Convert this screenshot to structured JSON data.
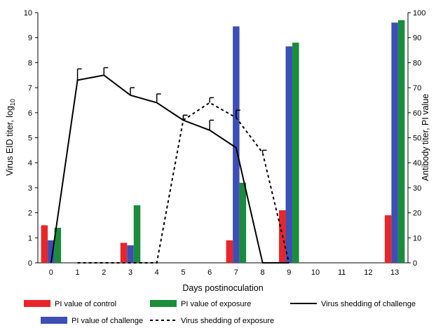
{
  "chart_data": {
    "type": "bar",
    "categories": [
      "0",
      "1",
      "2",
      "3",
      "4",
      "5",
      "6",
      "7",
      "8",
      "9",
      "10",
      "11",
      "12",
      "13"
    ],
    "xlabel": "Days postinoculation",
    "ylabel_left": "Virus EID titer, log",
    "ylabel_left_subscript": "10",
    "ylabel_right": "Antibody titer, PI value",
    "ylim_left": [
      0,
      10
    ],
    "ylim_right": [
      0,
      100
    ],
    "yticks_left": [
      "0",
      "1",
      "2",
      "3",
      "4",
      "5",
      "6",
      "7",
      "8",
      "9",
      "10"
    ],
    "yticks_right": [
      "0",
      "10",
      "20",
      "30",
      "40",
      "50",
      "60",
      "70",
      "80",
      "90",
      "100"
    ],
    "grid": false,
    "legend_position": "bottom",
    "bar_series": [
      {
        "name": "PI value of control",
        "color": "#e8262a",
        "axis": "right",
        "values": [
          15,
          null,
          null,
          8,
          null,
          null,
          null,
          9,
          null,
          21,
          null,
          null,
          null,
          19
        ]
      },
      {
        "name": "PI value of challenge",
        "color": "#3d4fb5",
        "axis": "right",
        "values": [
          9,
          null,
          null,
          7,
          null,
          null,
          null,
          94.5,
          null,
          86.5,
          null,
          null,
          null,
          96
        ]
      },
      {
        "name": "PI value of exposure",
        "color": "#1a8c3c",
        "axis": "right",
        "values": [
          14,
          null,
          null,
          23,
          null,
          null,
          null,
          32,
          null,
          88,
          null,
          null,
          null,
          97
        ]
      }
    ],
    "line_series": [
      {
        "name": "Virus shedding of challenge",
        "style": "solid",
        "axis": "left",
        "x": [
          "0",
          "1",
          "2",
          "3",
          "4",
          "5",
          "6",
          "7",
          "8",
          "9"
        ],
        "y": [
          0,
          7.3,
          7.5,
          6.7,
          6.4,
          5.7,
          5.3,
          4.6,
          0,
          0
        ],
        "error": [
          0,
          0.45,
          0.3,
          0.3,
          0.35,
          0.2,
          0.4,
          0,
          0,
          0
        ]
      },
      {
        "name": "Virus shedding of exposure",
        "style": "dashed",
        "axis": "left",
        "x": [
          "1",
          "2",
          "3",
          "4",
          "5",
          "6",
          "7",
          "8",
          "9"
        ],
        "y": [
          0,
          0,
          0,
          0,
          5.7,
          6.4,
          5.8,
          4.4,
          0
        ],
        "error": [
          0,
          0,
          0,
          0,
          0.2,
          0.2,
          0.3,
          0.1,
          0
        ]
      }
    ],
    "legend": [
      {
        "name": "PI value of control",
        "kind": "bar",
        "color": "#e8262a"
      },
      {
        "name": "PI value of exposure",
        "kind": "bar",
        "color": "#1a8c3c"
      },
      {
        "name": "Virus shedding of challenge",
        "kind": "line",
        "style": "solid"
      },
      {
        "name": "PI value of challenge",
        "kind": "bar",
        "color": "#3d4fb5"
      },
      {
        "name": "Virus shedding of exposure",
        "kind": "line",
        "style": "dashed"
      }
    ]
  }
}
